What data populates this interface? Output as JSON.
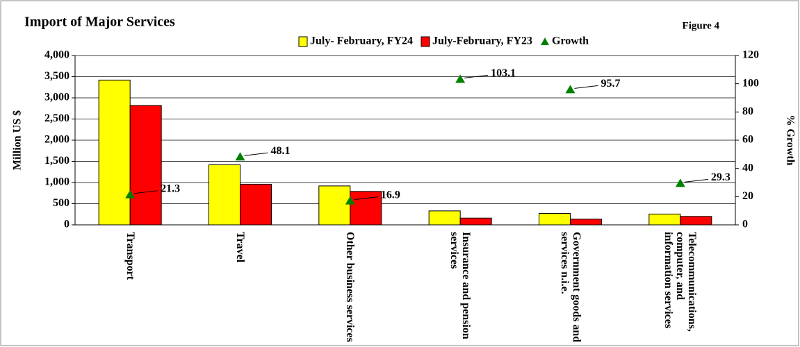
{
  "chart_data": {
    "type": "bar",
    "title": "Import of Major Services",
    "subtitle": "Figure 4",
    "categories": [
      "Transport",
      "Travel",
      "Other business services",
      "Insurance and pension services",
      "Government goods and services n.i.e.",
      "Telecommunications, computer, and information services"
    ],
    "series": [
      {
        "name": "July- February, FY24",
        "color": "#ffff00",
        "values": [
          3420,
          1420,
          920,
          330,
          270,
          255
        ]
      },
      {
        "name": "July-February, FY23",
        "color": "#ff0000",
        "values": [
          2820,
          960,
          790,
          160,
          135,
          200
        ]
      },
      {
        "name": "Growth",
        "color": "#008000",
        "type": "scatter",
        "axis": "y2",
        "values": [
          21.3,
          48.1,
          16.9,
          103.1,
          95.7,
          29.3
        ]
      }
    ],
    "ylabel": "Million US $",
    "y2label": "% Growth",
    "ylim": [
      0,
      4000
    ],
    "yticks": [
      0,
      500,
      {
        "value": 1000,
        "label": "1,000"
      },
      {
        "value": 1500,
        "label": "1,500"
      },
      {
        "value": 2000,
        "label": "2,000"
      },
      {
        "value": 2500,
        "label": "2,500"
      },
      {
        "value": 3000,
        "label": "3,000"
      },
      {
        "value": 3500,
        "label": "3,500"
      },
      {
        "value": 4000,
        "label": "4,000"
      }
    ],
    "y2lim": [
      0,
      120
    ],
    "y2ticks": [
      0,
      20,
      40,
      60,
      80,
      100,
      120
    ],
    "grid": true,
    "legend": "top-right"
  }
}
